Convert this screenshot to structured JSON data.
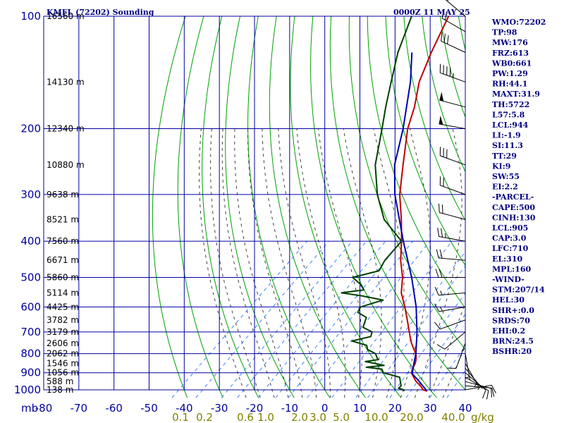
{
  "header": {
    "title": "KMFL (72202) Sounding",
    "valid_time": "0000Z 11 MAY 25"
  },
  "chart_data": {
    "type": "line",
    "subtype": "skew-t log-p sounding",
    "x_axis_label": "mb",
    "mixing_ratio_unit": "g/kg",
    "temperature_range_c": [
      -80,
      40
    ],
    "pressure_range_mb": [
      1000,
      100
    ],
    "y_scale": "log",
    "pressure_levels": [
      100,
      200,
      300,
      400,
      500,
      600,
      700,
      800,
      900,
      1000
    ],
    "temperature_ticks": [
      -80,
      -70,
      -60,
      -50,
      -40,
      -30,
      -20,
      -10,
      0,
      10,
      20,
      30,
      40
    ],
    "height_labels": [
      {
        "p": 100,
        "label": "16560 m"
      },
      {
        "p": 150,
        "label": "14130 m"
      },
      {
        "p": 200,
        "label": "12340 m"
      },
      {
        "p": 250,
        "label": "10880 m"
      },
      {
        "p": 300,
        "label": "9638 m"
      },
      {
        "p": 350,
        "label": "8521 m"
      },
      {
        "p": 400,
        "label": "7560 m"
      },
      {
        "p": 450,
        "label": "6671 m"
      },
      {
        "p": 500,
        "label": "5860 m"
      },
      {
        "p": 550,
        "label": "5114 m"
      },
      {
        "p": 600,
        "label": "4425 m"
      },
      {
        "p": 650,
        "label": "3782 m"
      },
      {
        "p": 700,
        "label": "3179 m"
      },
      {
        "p": 750,
        "label": "2606 m"
      },
      {
        "p": 800,
        "label": "2062 m"
      },
      {
        "p": 850,
        "label": "1546 m"
      },
      {
        "p": 900,
        "label": "1056 m"
      },
      {
        "p": 950,
        "label": "588 m"
      },
      {
        "p": 1000,
        "label": "138 m"
      }
    ],
    "mixing_ratio_labels": [
      "0.1",
      "0.2",
      "0.6",
      "1.0",
      "2.0",
      "3.0",
      "5.0",
      "10.0",
      "20.0",
      "40.0"
    ],
    "series": [
      {
        "name": "temperature",
        "color": "#c00000",
        "points": [
          [
            1008,
            29.5
          ],
          [
            1000,
            28.0
          ],
          [
            975,
            26.0
          ],
          [
            950,
            23.5
          ],
          [
            925,
            21.5
          ],
          [
            900,
            19.5
          ],
          [
            875,
            18.5
          ],
          [
            850,
            17.8
          ],
          [
            825,
            16.6
          ],
          [
            800,
            15.0
          ],
          [
            775,
            12.8
          ],
          [
            750,
            10.6
          ],
          [
            725,
            8.6
          ],
          [
            700,
            6.6
          ],
          [
            650,
            2.4
          ],
          [
            600,
            -2.2
          ],
          [
            550,
            -7.5
          ],
          [
            500,
            -11.8
          ],
          [
            450,
            -17.5
          ],
          [
            400,
            -23.0
          ],
          [
            350,
            -29.6
          ],
          [
            300,
            -37.6
          ],
          [
            250,
            -45.6
          ],
          [
            200,
            -55.2
          ],
          [
            175,
            -59.8
          ],
          [
            150,
            -66.0
          ],
          [
            125,
            -71.5
          ],
          [
            100,
            -77.5
          ]
        ]
      },
      {
        "name": "dewpoint",
        "color": "#004000",
        "points": [
          [
            1008,
            23.0
          ],
          [
            1000,
            22.5
          ],
          [
            990,
            20.5
          ],
          [
            975,
            20.5
          ],
          [
            950,
            19.0
          ],
          [
            925,
            17.5
          ],
          [
            900,
            11.5
          ],
          [
            880,
            10.0
          ],
          [
            870,
            5.0
          ],
          [
            860,
            9.5
          ],
          [
            850,
            6.5
          ],
          [
            840,
            3.0
          ],
          [
            830,
            6.0
          ],
          [
            800,
            3.5
          ],
          [
            780,
            0.0
          ],
          [
            760,
            -1.5
          ],
          [
            740,
            -7.0
          ],
          [
            720,
            -3.0
          ],
          [
            700,
            -4.0
          ],
          [
            680,
            -8.0
          ],
          [
            640,
            -10.0
          ],
          [
            620,
            -14.0
          ],
          [
            600,
            -14.8
          ],
          [
            575,
            -10.5
          ],
          [
            560,
            -18.0
          ],
          [
            550,
            -24.5
          ],
          [
            540,
            -19.0
          ],
          [
            520,
            -22.0
          ],
          [
            500,
            -26.0
          ],
          [
            480,
            -20.5
          ],
          [
            450,
            -22.0
          ],
          [
            400,
            -23.0
          ],
          [
            350,
            -34.5
          ],
          [
            300,
            -44.0
          ],
          [
            250,
            -53.5
          ],
          [
            200,
            -62.5
          ],
          [
            175,
            -68.0
          ],
          [
            150,
            -74.0
          ],
          [
            125,
            -81.0
          ],
          [
            100,
            -88.0
          ]
        ]
      },
      {
        "name": "parcel",
        "color": "#0000b0",
        "points": [
          [
            1008,
            29.5
          ],
          [
            950,
            24.4
          ],
          [
            905,
            20.0
          ],
          [
            850,
            17.4
          ],
          [
            800,
            15.0
          ],
          [
            700,
            8.8
          ],
          [
            600,
            1.0
          ],
          [
            500,
            -9.2
          ],
          [
            400,
            -22.5
          ],
          [
            300,
            -39.0
          ],
          [
            250,
            -48.0
          ],
          [
            200,
            -56.5
          ],
          [
            150,
            -68.5
          ],
          [
            125,
            -77.0
          ]
        ]
      }
    ],
    "wind_barbs": [
      {
        "p": 1000,
        "dir": 80,
        "spd": 10
      },
      {
        "p": 975,
        "dir": 95,
        "spd": 10
      },
      {
        "p": 950,
        "dir": 105,
        "spd": 10
      },
      {
        "p": 925,
        "dir": 120,
        "spd": 10
      },
      {
        "p": 900,
        "dir": 130,
        "spd": 10
      },
      {
        "p": 875,
        "dir": 140,
        "spd": 5
      },
      {
        "p": 850,
        "dir": 150,
        "spd": 5
      },
      {
        "p": 800,
        "dir": 170,
        "spd": 5
      },
      {
        "p": 750,
        "dir": 200,
        "spd": 10
      },
      {
        "p": 700,
        "dir": 230,
        "spd": 10
      },
      {
        "p": 650,
        "dir": 250,
        "spd": 10
      },
      {
        "p": 600,
        "dir": 260,
        "spd": 15
      },
      {
        "p": 550,
        "dir": 265,
        "spd": 15
      },
      {
        "p": 500,
        "dir": 270,
        "spd": 20
      },
      {
        "p": 450,
        "dir": 275,
        "spd": 20
      },
      {
        "p": 400,
        "dir": 280,
        "spd": 25
      },
      {
        "p": 350,
        "dir": 285,
        "spd": 20
      },
      {
        "p": 300,
        "dir": 290,
        "spd": 20
      },
      {
        "p": 250,
        "dir": 290,
        "spd": 30
      },
      {
        "p": 200,
        "dir": 280,
        "spd": 50
      },
      {
        "p": 175,
        "dir": 285,
        "spd": 50
      },
      {
        "p": 150,
        "dir": 290,
        "spd": 45
      },
      {
        "p": 125,
        "dir": 295,
        "spd": 30
      },
      {
        "p": 110,
        "dir": 300,
        "spd": 20
      },
      {
        "p": 100,
        "dir": 310,
        "spd": 20
      }
    ]
  },
  "indices": [
    "WMO:72202",
    "TP:98",
    "MW:176",
    "FRZ:613",
    "WB0:661",
    "PW:1.29",
    "RH:44.1",
    "MAXT:31.9",
    "TH:5722",
    "L57:5.8",
    "LCL:944",
    "LI:-1.9",
    "SI:11.3",
    "TT:29",
    "KI:9",
    "SW:55",
    "EI:2.2",
    "-PARCEL-",
    "CAPE:500",
    "CINH:130",
    "LCL:905",
    "CAP:3.0",
    "LFC:710",
    "EL:310",
    "MPL:160",
    "-WIND-",
    "STM:207/14",
    "HEL:30",
    "SHR+:0.0",
    "SRDS:70",
    "EHI:0.2",
    "BRN:24.5",
    "BSHR:20"
  ],
  "colors": {
    "grid": "#0000a0",
    "dry_adiabat": "#00a000",
    "moist_adiabat": "#404040",
    "mixing_ratio": "#4080ff",
    "wind_barb": "#000000"
  }
}
